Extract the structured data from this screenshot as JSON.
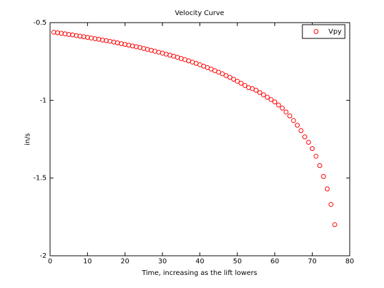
{
  "chart_data": {
    "type": "scatter",
    "title": "Velocity Curve",
    "x_label": "Time, increasing as the lift lowers",
    "y_label": "in/s",
    "series": [
      {
        "name": "Vpy",
        "color": "#ff0000",
        "marker": "circle",
        "x": [
          1,
          2,
          3,
          4,
          5,
          6,
          7,
          8,
          9,
          10,
          11,
          12,
          13,
          14,
          15,
          16,
          17,
          18,
          19,
          20,
          21,
          22,
          23,
          24,
          25,
          26,
          27,
          28,
          29,
          30,
          31,
          32,
          33,
          34,
          35,
          36,
          37,
          38,
          39,
          40,
          41,
          42,
          43,
          44,
          45,
          46,
          47,
          48,
          49,
          50,
          51,
          52,
          53,
          54,
          55,
          56,
          57,
          58,
          59,
          60,
          61,
          62,
          63,
          64,
          65,
          66,
          67,
          68,
          69,
          70,
          71,
          72,
          73,
          74,
          75,
          76
        ],
        "values": [
          -0.562,
          -0.565,
          -0.569,
          -0.572,
          -0.576,
          -0.579,
          -0.583,
          -0.587,
          -0.591,
          -0.595,
          -0.599,
          -0.603,
          -0.607,
          -0.612,
          -0.616,
          -0.62,
          -0.625,
          -0.63,
          -0.635,
          -0.64,
          -0.645,
          -0.65,
          -0.655,
          -0.66,
          -0.666,
          -0.672,
          -0.678,
          -0.684,
          -0.69,
          -0.696,
          -0.703,
          -0.709,
          -0.716,
          -0.723,
          -0.731,
          -0.738,
          -0.746,
          -0.754,
          -0.762,
          -0.771,
          -0.78,
          -0.789,
          -0.799,
          -0.809,
          -0.819,
          -0.829,
          -0.841,
          -0.852,
          -0.864,
          -0.877,
          -0.89,
          -0.904,
          -0.918,
          -0.925,
          -0.935,
          -0.95,
          -0.965,
          -0.98,
          -0.995,
          -1.01,
          -1.03,
          -1.05,
          -1.075,
          -1.1,
          -1.13,
          -1.16,
          -1.195,
          -1.235,
          -1.27,
          -1.31,
          -1.36,
          -1.42,
          -1.49,
          -1.57,
          -1.67,
          -1.8
        ]
      }
    ],
    "xlim": [
      0,
      80
    ],
    "xticks": [
      0,
      10,
      20,
      30,
      40,
      50,
      60,
      70,
      80
    ],
    "ylim": [
      -2,
      -0.5
    ],
    "yticks": [
      -2,
      -1.5,
      -1,
      -0.5
    ],
    "grid": false,
    "legend": "upper right"
  }
}
